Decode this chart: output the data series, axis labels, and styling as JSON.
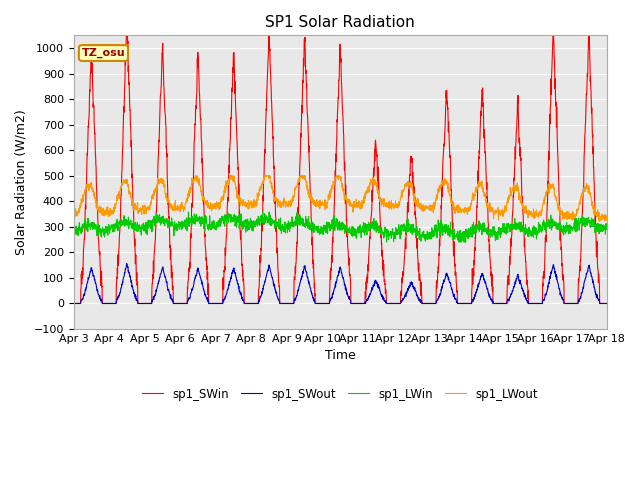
{
  "title": "SP1 Solar Radiation",
  "xlabel": "Time",
  "ylabel": "Solar Radiation (W/m2)",
  "ylim": [
    -100,
    1050
  ],
  "bg_color": "#e8e8e8",
  "fig_color": "#ffffff",
  "legend_labels": [
    "sp1_SWin",
    "sp1_SWout",
    "sp1_LWin",
    "sp1_LWout"
  ],
  "line_colors": [
    "#ff0000",
    "#0000cc",
    "#00cc00",
    "#ff9900"
  ],
  "tz_label": "TZ_osu",
  "xticklabels": [
    "Apr 3",
    "Apr 4",
    "Apr 5",
    "Apr 6",
    "Apr 7",
    "Apr 8",
    "Apr 9",
    "Apr 10",
    "Apr 11",
    "Apr 12",
    "Apr 13",
    "Apr 14",
    "Apr 15",
    "Apr 16",
    "Apr 17",
    "Apr 18"
  ],
  "grid_color": "#ffffff",
  "title_fontsize": 11,
  "tick_fontsize": 8,
  "axis_label_fontsize": 9
}
